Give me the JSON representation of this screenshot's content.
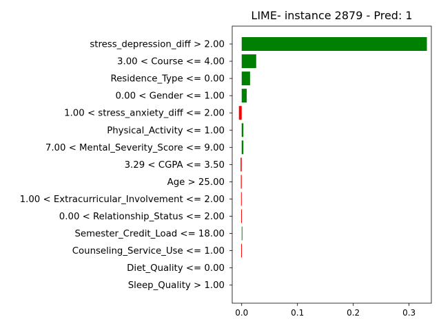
{
  "chart_data": {
    "type": "bar",
    "orientation": "horizontal",
    "title": "LIME- instance 2879 - Pred: 1",
    "xlabel": "",
    "ylabel": "",
    "xlim": [
      -0.017,
      0.34
    ],
    "xticks": [
      0.0,
      0.1,
      0.2,
      0.3
    ],
    "xtick_labels": [
      "0.0",
      "0.1",
      "0.2",
      "0.3"
    ],
    "grid": false,
    "positive_color": "#008000",
    "negative_color": "#ff0000",
    "categories": [
      "stress_depression_diff > 2.00",
      "3.00 < Course <= 4.00",
      "Residence_Type <= 0.00",
      "0.00 < Gender <= 1.00",
      "1.00 < stress_anxiety_diff <= 2.00",
      "Physical_Activity <= 1.00",
      "7.00 < Mental_Severity_Score <= 9.00",
      "3.29 < CGPA <= 3.50",
      "Age > 25.00",
      "1.00 < Extracurricular_Involvement <= 2.00",
      "0.00 < Relationship_Status <= 2.00",
      "Semester_Credit_Load <= 18.00",
      "Counseling_Service_Use <= 1.00",
      "Diet_Quality <= 0.00",
      "Sleep_Quality > 1.00"
    ],
    "values": [
      0.332,
      0.026,
      0.015,
      0.009,
      -0.005,
      0.003,
      0.003,
      -0.002,
      -0.0015,
      -0.0012,
      -0.001,
      0.001,
      -0.001,
      0.0,
      0.0
    ]
  }
}
